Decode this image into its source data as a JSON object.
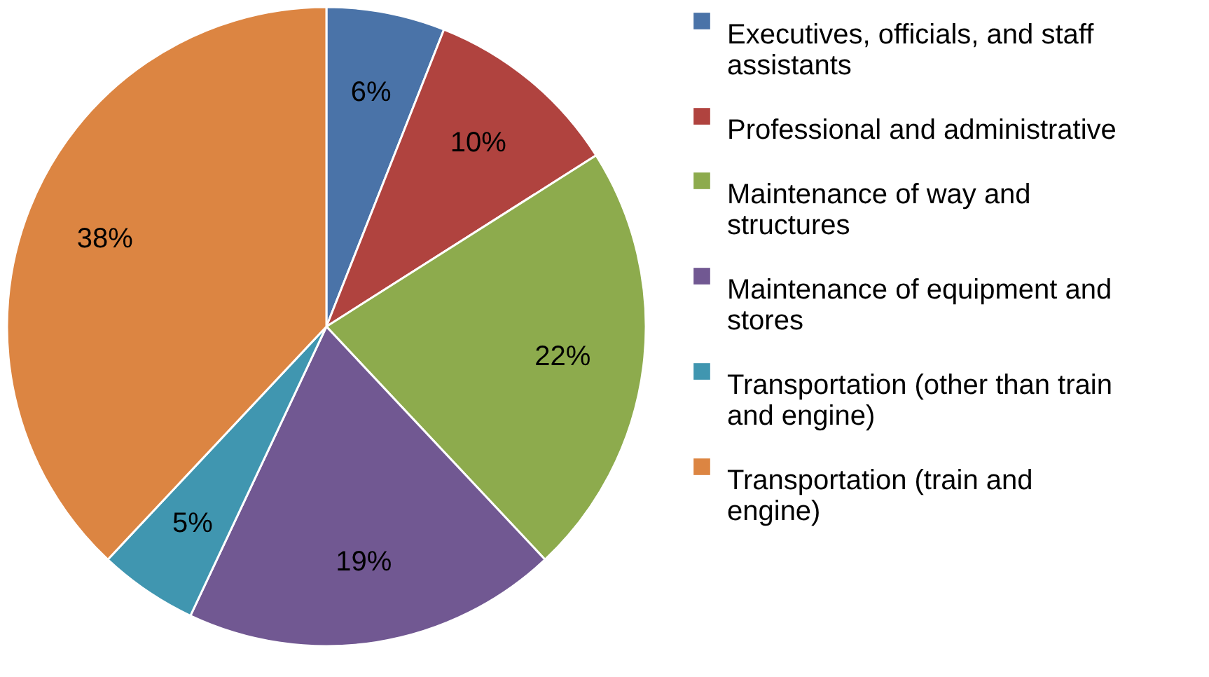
{
  "chart_data": {
    "type": "pie",
    "categories": [
      "Executives, officials, and staff assistants",
      "Professional and administrative",
      "Maintenance of way and structures",
      "Maintenance of equipment and stores",
      "Transportation (other than train and engine)",
      "Transportation (train and engine)"
    ],
    "values": [
      6,
      10,
      22,
      19,
      5,
      38
    ],
    "value_labels": [
      "6%",
      "10%",
      "22%",
      "19%",
      "5%",
      "38%"
    ],
    "colors": [
      "#4a73a8",
      "#b0433f",
      "#8dab4d",
      "#715892",
      "#4096b0",
      "#dc8542"
    ],
    "legend": "right"
  }
}
